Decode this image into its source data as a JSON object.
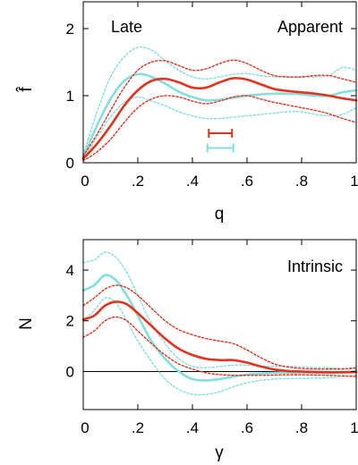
{
  "chart_data": [
    {
      "type": "line",
      "panel": "top",
      "ylabel": "f̂",
      "xlabel": "q",
      "annotations": {
        "left": "Late",
        "right": "Apparent"
      },
      "xlim": [
        0,
        1
      ],
      "ylim": [
        0,
        2.4
      ],
      "xticks": [
        0,
        0.2,
        0.4,
        0.6,
        0.8,
        1
      ],
      "xtick_labels": [
        "0",
        ".2",
        ".4",
        ".6",
        ".8",
        "1"
      ],
      "yticks": [
        0,
        1,
        2
      ],
      "ytick_labels": [
        "0",
        "1",
        "2"
      ],
      "colors": {
        "red": "#e8301c",
        "cyan": "#7fe0dc"
      },
      "series": [
        {
          "color": "cyan",
          "style": "solid",
          "x": [
            0,
            0.05,
            0.1,
            0.15,
            0.2,
            0.25,
            0.3,
            0.35,
            0.4,
            0.45,
            0.5,
            0.55,
            0.6,
            0.65,
            0.7,
            0.75,
            0.8,
            0.85,
            0.9,
            0.95,
            1
          ],
          "y": [
            0.08,
            0.55,
            0.95,
            1.22,
            1.32,
            1.28,
            1.18,
            1.06,
            0.98,
            0.93,
            0.94,
            0.97,
            1.0,
            1.02,
            1.03,
            1.03,
            1.02,
            1.0,
            1.0,
            1.05,
            1.08
          ]
        },
        {
          "color": "cyan",
          "style": "dotted",
          "x": [
            0,
            0.05,
            0.1,
            0.15,
            0.2,
            0.25,
            0.3,
            0.35,
            0.4,
            0.45,
            0.5,
            0.55,
            0.6,
            0.65,
            0.7,
            0.75,
            0.8,
            0.85,
            0.9,
            0.95,
            1
          ],
          "y": [
            0.12,
            0.75,
            1.28,
            1.58,
            1.72,
            1.68,
            1.52,
            1.38,
            1.28,
            1.25,
            1.28,
            1.32,
            1.33,
            1.3,
            1.28,
            1.28,
            1.28,
            1.28,
            1.3,
            1.42,
            1.38
          ]
        },
        {
          "color": "cyan",
          "style": "dotted",
          "x": [
            0,
            0.05,
            0.1,
            0.15,
            0.2,
            0.25,
            0.3,
            0.35,
            0.4,
            0.45,
            0.5,
            0.55,
            0.6,
            0.65,
            0.7,
            0.75,
            0.8,
            0.85,
            0.9,
            0.95,
            1
          ],
          "y": [
            0.05,
            0.38,
            0.68,
            0.9,
            0.98,
            0.92,
            0.85,
            0.76,
            0.7,
            0.66,
            0.66,
            0.68,
            0.7,
            0.72,
            0.74,
            0.76,
            0.76,
            0.72,
            0.7,
            0.72,
            0.82
          ]
        },
        {
          "color": "red",
          "style": "solid",
          "x": [
            0,
            0.05,
            0.1,
            0.15,
            0.2,
            0.25,
            0.3,
            0.35,
            0.4,
            0.45,
            0.5,
            0.55,
            0.6,
            0.65,
            0.7,
            0.75,
            0.8,
            0.85,
            0.9,
            0.95,
            1
          ],
          "y": [
            0.06,
            0.28,
            0.55,
            0.85,
            1.08,
            1.22,
            1.25,
            1.2,
            1.12,
            1.12,
            1.2,
            1.26,
            1.24,
            1.17,
            1.1,
            1.07,
            1.05,
            1.03,
            1.0,
            0.96,
            0.93
          ]
        },
        {
          "color": "red",
          "style": "dotted",
          "x": [
            0,
            0.05,
            0.1,
            0.15,
            0.2,
            0.25,
            0.3,
            0.35,
            0.4,
            0.45,
            0.5,
            0.55,
            0.6,
            0.65,
            0.7,
            0.75,
            0.8,
            0.85,
            0.9,
            0.95,
            1
          ],
          "y": [
            0.1,
            0.42,
            0.78,
            1.12,
            1.38,
            1.5,
            1.52,
            1.45,
            1.38,
            1.4,
            1.48,
            1.53,
            1.48,
            1.38,
            1.3,
            1.28,
            1.28,
            1.3,
            1.3,
            1.25,
            1.2
          ]
        },
        {
          "color": "red",
          "style": "dotted",
          "x": [
            0,
            0.05,
            0.1,
            0.15,
            0.2,
            0.25,
            0.3,
            0.35,
            0.4,
            0.45,
            0.5,
            0.55,
            0.6,
            0.65,
            0.7,
            0.75,
            0.8,
            0.85,
            0.9,
            0.95,
            1
          ],
          "y": [
            0.03,
            0.16,
            0.35,
            0.6,
            0.82,
            0.95,
            1.0,
            0.98,
            0.92,
            0.88,
            0.92,
            0.98,
            1.0,
            0.95,
            0.9,
            0.86,
            0.82,
            0.78,
            0.73,
            0.66,
            0.6
          ]
        }
      ],
      "error_bars": [
        {
          "color": "red",
          "y": 0.44,
          "x_from": 0.46,
          "x_to": 0.545
        },
        {
          "color": "cyan",
          "y": 0.22,
          "x_from": 0.455,
          "x_to": 0.55
        }
      ]
    },
    {
      "type": "line",
      "panel": "bottom",
      "ylabel": "N",
      "xlabel": "γ",
      "annotations": {
        "right": "Intrinsic"
      },
      "xlim": [
        0,
        1
      ],
      "ylim": [
        -1.5,
        5.2
      ],
      "xticks": [
        0,
        0.2,
        0.4,
        0.6,
        0.8,
        1
      ],
      "xtick_labels": [
        "0",
        ".2",
        ".4",
        ".6",
        ".8",
        "1"
      ],
      "yticks": [
        0,
        2,
        4
      ],
      "ytick_labels": [
        "0",
        "2",
        "4"
      ],
      "zero_line": 0,
      "colors": {
        "red": "#e8301c",
        "cyan": "#7fe0dc"
      },
      "series": [
        {
          "color": "cyan",
          "style": "solid",
          "x": [
            0,
            0.04,
            0.08,
            0.12,
            0.16,
            0.2,
            0.25,
            0.3,
            0.35,
            0.4,
            0.45,
            0.5,
            0.55,
            0.6,
            0.65,
            0.7,
            0.75,
            0.8,
            0.85,
            0.9,
            0.95,
            1
          ],
          "y": [
            3.2,
            3.4,
            3.8,
            3.6,
            3.0,
            2.2,
            1.2,
            0.5,
            0.0,
            -0.3,
            -0.35,
            -0.3,
            -0.2,
            -0.12,
            -0.08,
            -0.05,
            -0.05,
            -0.05,
            -0.05,
            -0.05,
            -0.03,
            0.0
          ]
        },
        {
          "color": "cyan",
          "style": "dotted",
          "x": [
            0,
            0.04,
            0.08,
            0.12,
            0.16,
            0.2,
            0.25,
            0.3,
            0.35,
            0.4,
            0.45,
            0.5,
            0.55,
            0.6,
            0.65,
            0.7,
            0.75,
            0.8,
            0.85,
            0.9,
            0.95,
            1
          ],
          "y": [
            4.3,
            4.4,
            4.7,
            4.5,
            3.9,
            3.0,
            1.9,
            1.1,
            0.5,
            0.2,
            0.15,
            0.2,
            0.25,
            0.25,
            0.22,
            0.2,
            0.2,
            0.18,
            0.16,
            0.15,
            0.12,
            0.1
          ]
        },
        {
          "color": "cyan",
          "style": "dotted",
          "x": [
            0,
            0.04,
            0.08,
            0.12,
            0.16,
            0.2,
            0.25,
            0.3,
            0.35,
            0.4,
            0.45,
            0.5,
            0.55,
            0.6,
            0.65,
            0.7,
            0.75,
            0.8,
            0.85,
            0.9,
            0.95,
            1
          ],
          "y": [
            2.0,
            2.4,
            2.9,
            2.7,
            2.0,
            1.2,
            0.4,
            -0.3,
            -0.7,
            -0.9,
            -0.9,
            -0.8,
            -0.6,
            -0.45,
            -0.35,
            -0.3,
            -0.28,
            -0.28,
            -0.26,
            -0.24,
            -0.2,
            -0.15
          ]
        },
        {
          "color": "red",
          "style": "solid",
          "x": [
            0,
            0.04,
            0.08,
            0.12,
            0.16,
            0.2,
            0.25,
            0.3,
            0.35,
            0.4,
            0.45,
            0.5,
            0.55,
            0.6,
            0.65,
            0.7,
            0.75,
            0.8,
            0.85,
            0.9,
            0.95,
            1
          ],
          "y": [
            2.05,
            2.2,
            2.6,
            2.75,
            2.65,
            2.3,
            1.8,
            1.3,
            0.9,
            0.65,
            0.5,
            0.45,
            0.45,
            0.35,
            0.2,
            0.08,
            0.02,
            0.0,
            -0.02,
            -0.03,
            -0.03,
            -0.02
          ]
        },
        {
          "color": "red",
          "style": "dotted",
          "x": [
            0,
            0.04,
            0.08,
            0.12,
            0.16,
            0.2,
            0.25,
            0.3,
            0.35,
            0.4,
            0.45,
            0.5,
            0.55,
            0.6,
            0.65,
            0.7,
            0.75,
            0.8,
            0.85,
            0.9,
            0.95,
            1
          ],
          "y": [
            2.6,
            2.9,
            3.25,
            3.4,
            3.3,
            3.0,
            2.5,
            2.0,
            1.65,
            1.45,
            1.3,
            1.2,
            1.1,
            0.85,
            0.55,
            0.3,
            0.18,
            0.12,
            0.1,
            0.1,
            0.1,
            0.15
          ]
        },
        {
          "color": "red",
          "style": "dotted",
          "x": [
            0,
            0.04,
            0.08,
            0.12,
            0.16,
            0.2,
            0.25,
            0.3,
            0.35,
            0.4,
            0.45,
            0.5,
            0.55,
            0.6,
            0.65,
            0.7,
            0.75,
            0.8,
            0.85,
            0.9,
            0.95,
            1
          ],
          "y": [
            1.35,
            1.6,
            2.0,
            2.15,
            2.0,
            1.6,
            1.1,
            0.65,
            0.3,
            0.1,
            -0.05,
            -0.12,
            -0.15,
            -0.15,
            -0.15,
            -0.14,
            -0.13,
            -0.13,
            -0.14,
            -0.15,
            -0.17,
            -0.2
          ]
        }
      ]
    }
  ]
}
